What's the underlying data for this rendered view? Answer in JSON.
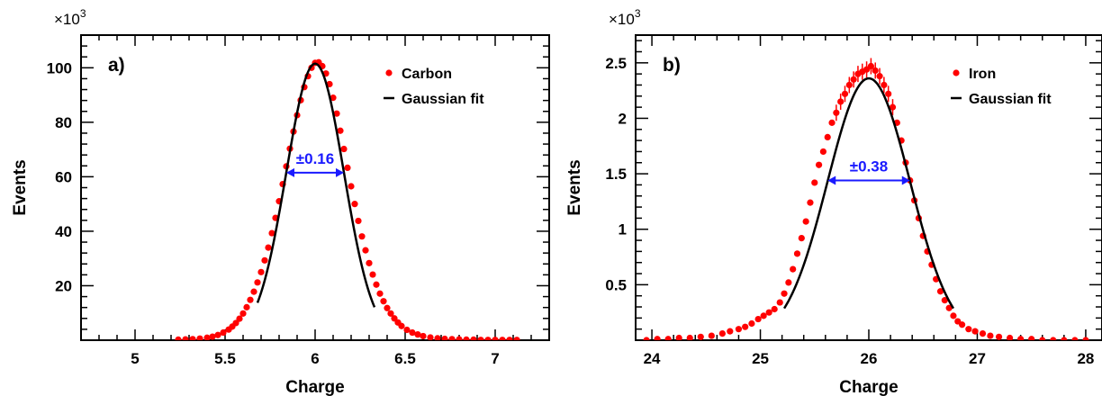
{
  "colors": {
    "data": "#ff0000",
    "fit": "#000000",
    "annotation": "#1a1aff"
  },
  "chart_data": [
    {
      "type": "scatter",
      "panel_label": "a)",
      "xlabel": "Charge",
      "ylabel": "Events",
      "y_multiplier": {
        "base": "×10",
        "exponent": "3"
      },
      "xlim": [
        4.7,
        7.3
      ],
      "ylim": [
        0,
        112
      ],
      "xticks": [
        5,
        5.5,
        6,
        6.5,
        7
      ],
      "xtick_labels": [
        "5",
        "5.5",
        "6",
        "6.5",
        "7"
      ],
      "yticks": [
        20,
        40,
        60,
        80,
        100
      ],
      "ytick_labels": [
        "20",
        "40",
        "60",
        "80",
        "100"
      ],
      "legend": {
        "position": "top-right",
        "entries": [
          "Carbon",
          "Gaussian fit"
        ]
      },
      "series": [
        {
          "name": "Carbon",
          "kind": "points",
          "x": [
            5.24,
            5.28,
            5.32,
            5.36,
            5.4,
            5.43,
            5.46,
            5.49,
            5.52,
            5.54,
            5.56,
            5.58,
            5.6,
            5.62,
            5.64,
            5.66,
            5.68,
            5.7,
            5.72,
            5.74,
            5.76,
            5.78,
            5.8,
            5.82,
            5.84,
            5.86,
            5.88,
            5.9,
            5.92,
            5.94,
            5.96,
            5.98,
            6.0,
            6.02,
            6.04,
            6.06,
            6.08,
            6.1,
            6.12,
            6.14,
            6.16,
            6.18,
            6.2,
            6.22,
            6.24,
            6.26,
            6.28,
            6.3,
            6.32,
            6.34,
            6.36,
            6.38,
            6.4,
            6.42,
            6.44,
            6.46,
            6.48,
            6.51,
            6.54,
            6.57,
            6.6,
            6.64,
            6.68,
            6.72,
            6.76,
            6.8,
            6.84,
            6.88,
            6.92,
            6.96,
            7.0,
            7.04,
            7.08,
            7.12
          ],
          "y": [
            0.2,
            0.3,
            0.4,
            0.6,
            0.9,
            1.3,
            1.9,
            2.8,
            3.9,
            5.0,
            6.3,
            7.9,
            9.8,
            12.1,
            14.8,
            17.8,
            21.2,
            25.0,
            29.3,
            34.0,
            39.3,
            44.9,
            51.0,
            57.3,
            63.8,
            70.3,
            76.6,
            82.6,
            88.1,
            92.9,
            96.9,
            100.0,
            101.8,
            102.0,
            100.6,
            97.9,
            94.0,
            89.0,
            83.2,
            76.9,
            70.2,
            63.3,
            56.5,
            50.0,
            43.8,
            38.1,
            33.0,
            28.3,
            24.1,
            20.4,
            17.1,
            14.3,
            11.8,
            9.8,
            8.0,
            6.5,
            5.2,
            3.8,
            2.8,
            2.1,
            1.5,
            1.0,
            0.7,
            0.5,
            0.4,
            0.3,
            0.2,
            0.2,
            0.1,
            0.1,
            0.1,
            0.1,
            0.1,
            0.1
          ]
        },
        {
          "name": "Gaussian fit",
          "kind": "curve",
          "mean": 6.0,
          "sigma": 0.16,
          "amplitude": 101.5,
          "x_range": [
            5.68,
            6.33
          ]
        }
      ],
      "annotations": [
        {
          "text": "±0.16",
          "x_from": 5.84,
          "x_to": 6.16,
          "y": 61.5
        }
      ]
    },
    {
      "type": "scatter",
      "panel_label": "b)",
      "xlabel": "Charge",
      "ylabel": "Events",
      "y_multiplier": {
        "base": "×10",
        "exponent": "3"
      },
      "xlim": [
        23.85,
        28.15
      ],
      "ylim": [
        0,
        2.75
      ],
      "xticks": [
        24,
        25,
        26,
        27,
        28
      ],
      "xtick_labels": [
        "24",
        "25",
        "26",
        "27",
        "28"
      ],
      "yticks": [
        0.5,
        1,
        1.5,
        2,
        2.5
      ],
      "ytick_labels": [
        "0.5",
        "1",
        "1.5",
        "2",
        "2.5"
      ],
      "legend": {
        "position": "top-right",
        "entries": [
          "Iron",
          "Gaussian fit"
        ]
      },
      "series": [
        {
          "name": "Iron",
          "kind": "points",
          "x": [
            23.95,
            24.05,
            24.15,
            24.25,
            24.35,
            24.45,
            24.55,
            24.65,
            24.72,
            24.8,
            24.86,
            24.92,
            24.98,
            25.03,
            25.08,
            25.13,
            25.18,
            25.22,
            25.26,
            25.3,
            25.34,
            25.38,
            25.42,
            25.46,
            25.5,
            25.54,
            25.58,
            25.62,
            25.66,
            25.7,
            25.74,
            25.78,
            25.82,
            25.86,
            25.9,
            25.94,
            25.98,
            26.02,
            26.06,
            26.1,
            26.14,
            26.18,
            26.22,
            26.26,
            26.3,
            26.34,
            26.38,
            26.42,
            26.46,
            26.5,
            26.54,
            26.58,
            26.62,
            26.66,
            26.7,
            26.74,
            26.78,
            26.82,
            26.86,
            26.92,
            26.98,
            27.05,
            27.12,
            27.2,
            27.3,
            27.4,
            27.5,
            27.6,
            27.7,
            27.8,
            27.9,
            28.0
          ],
          "y": [
            0.0,
            0.01,
            0.01,
            0.02,
            0.02,
            0.03,
            0.04,
            0.06,
            0.08,
            0.1,
            0.12,
            0.15,
            0.19,
            0.22,
            0.25,
            0.28,
            0.34,
            0.42,
            0.52,
            0.64,
            0.78,
            0.92,
            1.07,
            1.24,
            1.42,
            1.58,
            1.7,
            1.83,
            1.96,
            2.05,
            2.15,
            2.22,
            2.3,
            2.35,
            2.4,
            2.42,
            2.44,
            2.47,
            2.43,
            2.38,
            2.3,
            2.22,
            2.1,
            1.96,
            1.8,
            1.6,
            1.44,
            1.26,
            1.1,
            0.94,
            0.8,
            0.68,
            0.55,
            0.44,
            0.36,
            0.29,
            0.22,
            0.17,
            0.14,
            0.1,
            0.08,
            0.06,
            0.04,
            0.03,
            0.02,
            0.01,
            0.01,
            0.0,
            0.0,
            0.0,
            0.0,
            0.0
          ]
        },
        {
          "name": "Gaussian fit",
          "kind": "curve",
          "mean": 26.0,
          "sigma": 0.38,
          "amplitude": 2.36,
          "x_range": [
            25.22,
            26.78
          ]
        }
      ],
      "annotations": [
        {
          "text": "±0.38",
          "x_from": 25.62,
          "x_to": 26.38,
          "y": 1.44
        }
      ]
    }
  ]
}
